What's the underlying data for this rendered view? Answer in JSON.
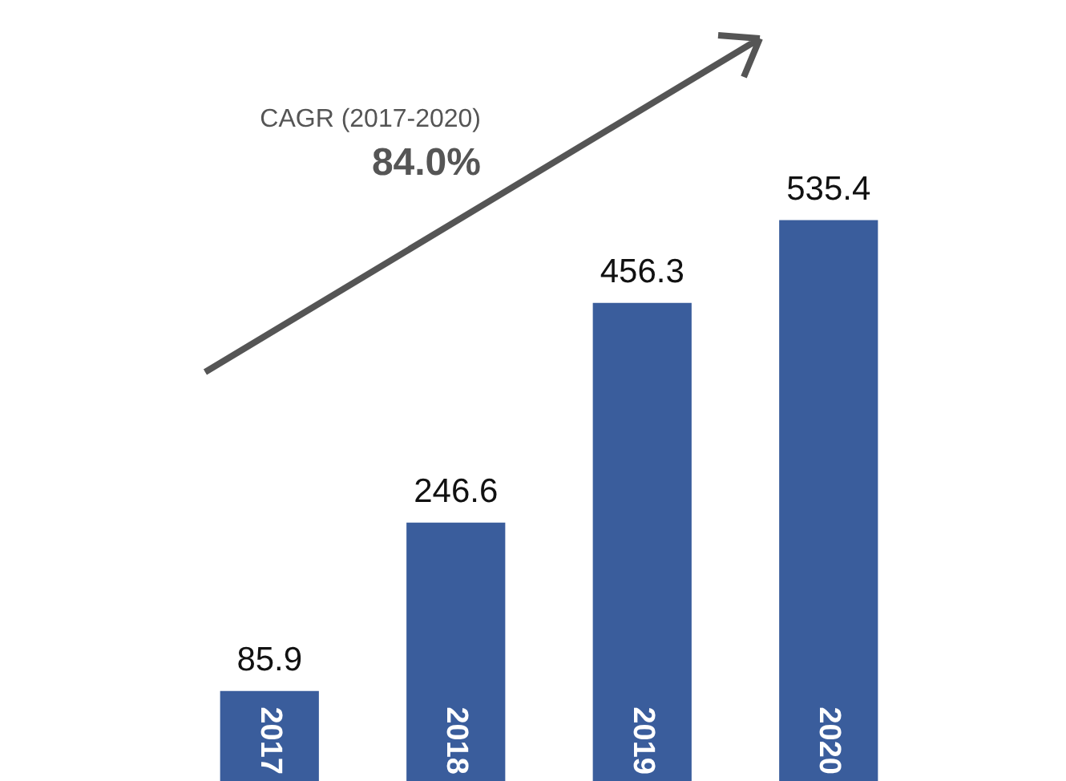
{
  "chart_data": {
    "type": "bar",
    "categories": [
      "2017",
      "2018",
      "2019",
      "2020"
    ],
    "values": [
      85.9,
      246.6,
      456.3,
      535.4
    ],
    "color": "#3a5d9c",
    "data_labels": true,
    "annotations": [
      "CAGR (2017-2020)",
      "84.0%"
    ]
  }
}
